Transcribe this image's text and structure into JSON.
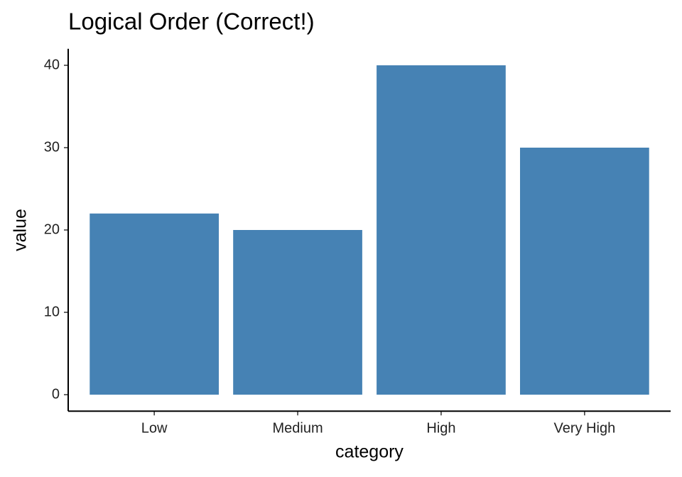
{
  "chart_data": {
    "type": "bar",
    "title": "Logical Order (Correct!)",
    "categories": [
      "Low",
      "Medium",
      "High",
      "Very High"
    ],
    "values": [
      22,
      20,
      40,
      30
    ],
    "color": "#4682b4",
    "xlabel": "category",
    "ylabel": "value",
    "ylim": [
      -2,
      42
    ],
    "yticks": [
      0,
      10,
      20,
      30,
      40
    ],
    "grid": false
  }
}
